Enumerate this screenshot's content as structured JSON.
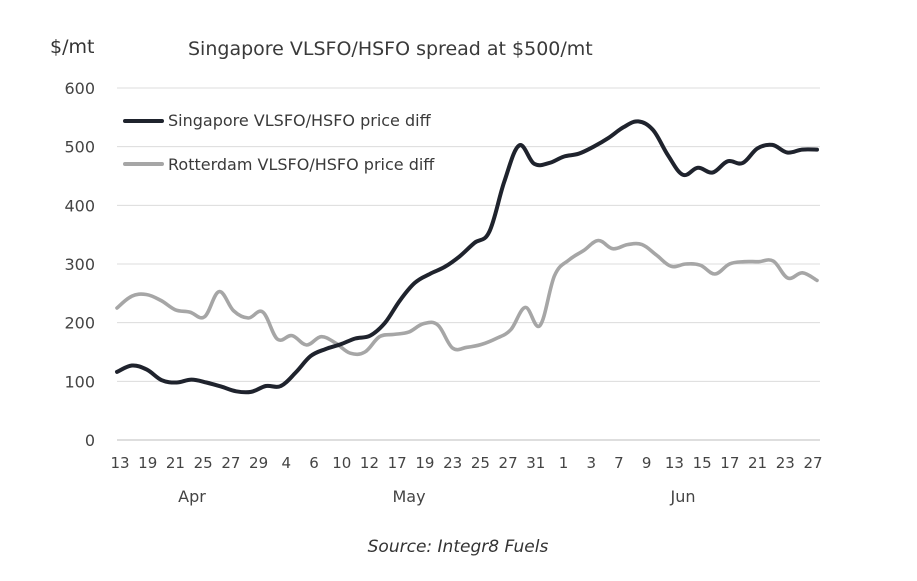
{
  "chart_data": {
    "type": "line",
    "title": "Singapore VLSFO/HSFO spread at $500/mt",
    "ylabel": "$/mt",
    "xlabel": "",
    "ylim": [
      0,
      600
    ],
    "y_ticks": [
      "0",
      "100",
      "200",
      "300",
      "400",
      "500",
      "600"
    ],
    "grid": "horizontal",
    "x_tick_labels": [
      "13",
      "19",
      "21",
      "25",
      "27",
      "29",
      "4",
      "6",
      "10",
      "12",
      "17",
      "19",
      "23",
      "25",
      "27",
      "31",
      "1",
      "3",
      "7",
      "9",
      "13",
      "15",
      "17",
      "21",
      "23",
      "27"
    ],
    "months": [
      "Apr",
      "May",
      "Jun"
    ],
    "legend": "top-left",
    "series": [
      {
        "name": "Singapore VLSFO/HSFO price diff",
        "color": "#1f232d",
        "values": [
          116,
          127,
          120,
          102,
          98,
          103,
          98,
          91,
          83,
          82,
          92,
          92,
          115,
          143,
          155,
          163,
          173,
          178,
          200,
          238,
          268,
          283,
          295,
          313,
          336,
          355,
          440,
          502,
          471,
          472,
          483,
          488,
          500,
          515,
          533,
          543,
          528,
          485,
          452,
          464,
          456,
          475,
          472,
          497,
          503,
          490,
          495,
          495
        ]
      },
      {
        "name": "Rotterdam VLSFO/HSFO price diff",
        "color": "#a6a6a6",
        "values": [
          225,
          245,
          248,
          238,
          222,
          218,
          210,
          253,
          220,
          208,
          218,
          172,
          178,
          162,
          176,
          165,
          148,
          150,
          176,
          180,
          184,
          198,
          196,
          157,
          158,
          163,
          173,
          188,
          226,
          195,
          280,
          307,
          323,
          340,
          326,
          333,
          333,
          315,
          296,
          300,
          298,
          283,
          300,
          304,
          304,
          305,
          276,
          285,
          272
        ]
      }
    ]
  },
  "source": "Source: Integr8 Fuels"
}
